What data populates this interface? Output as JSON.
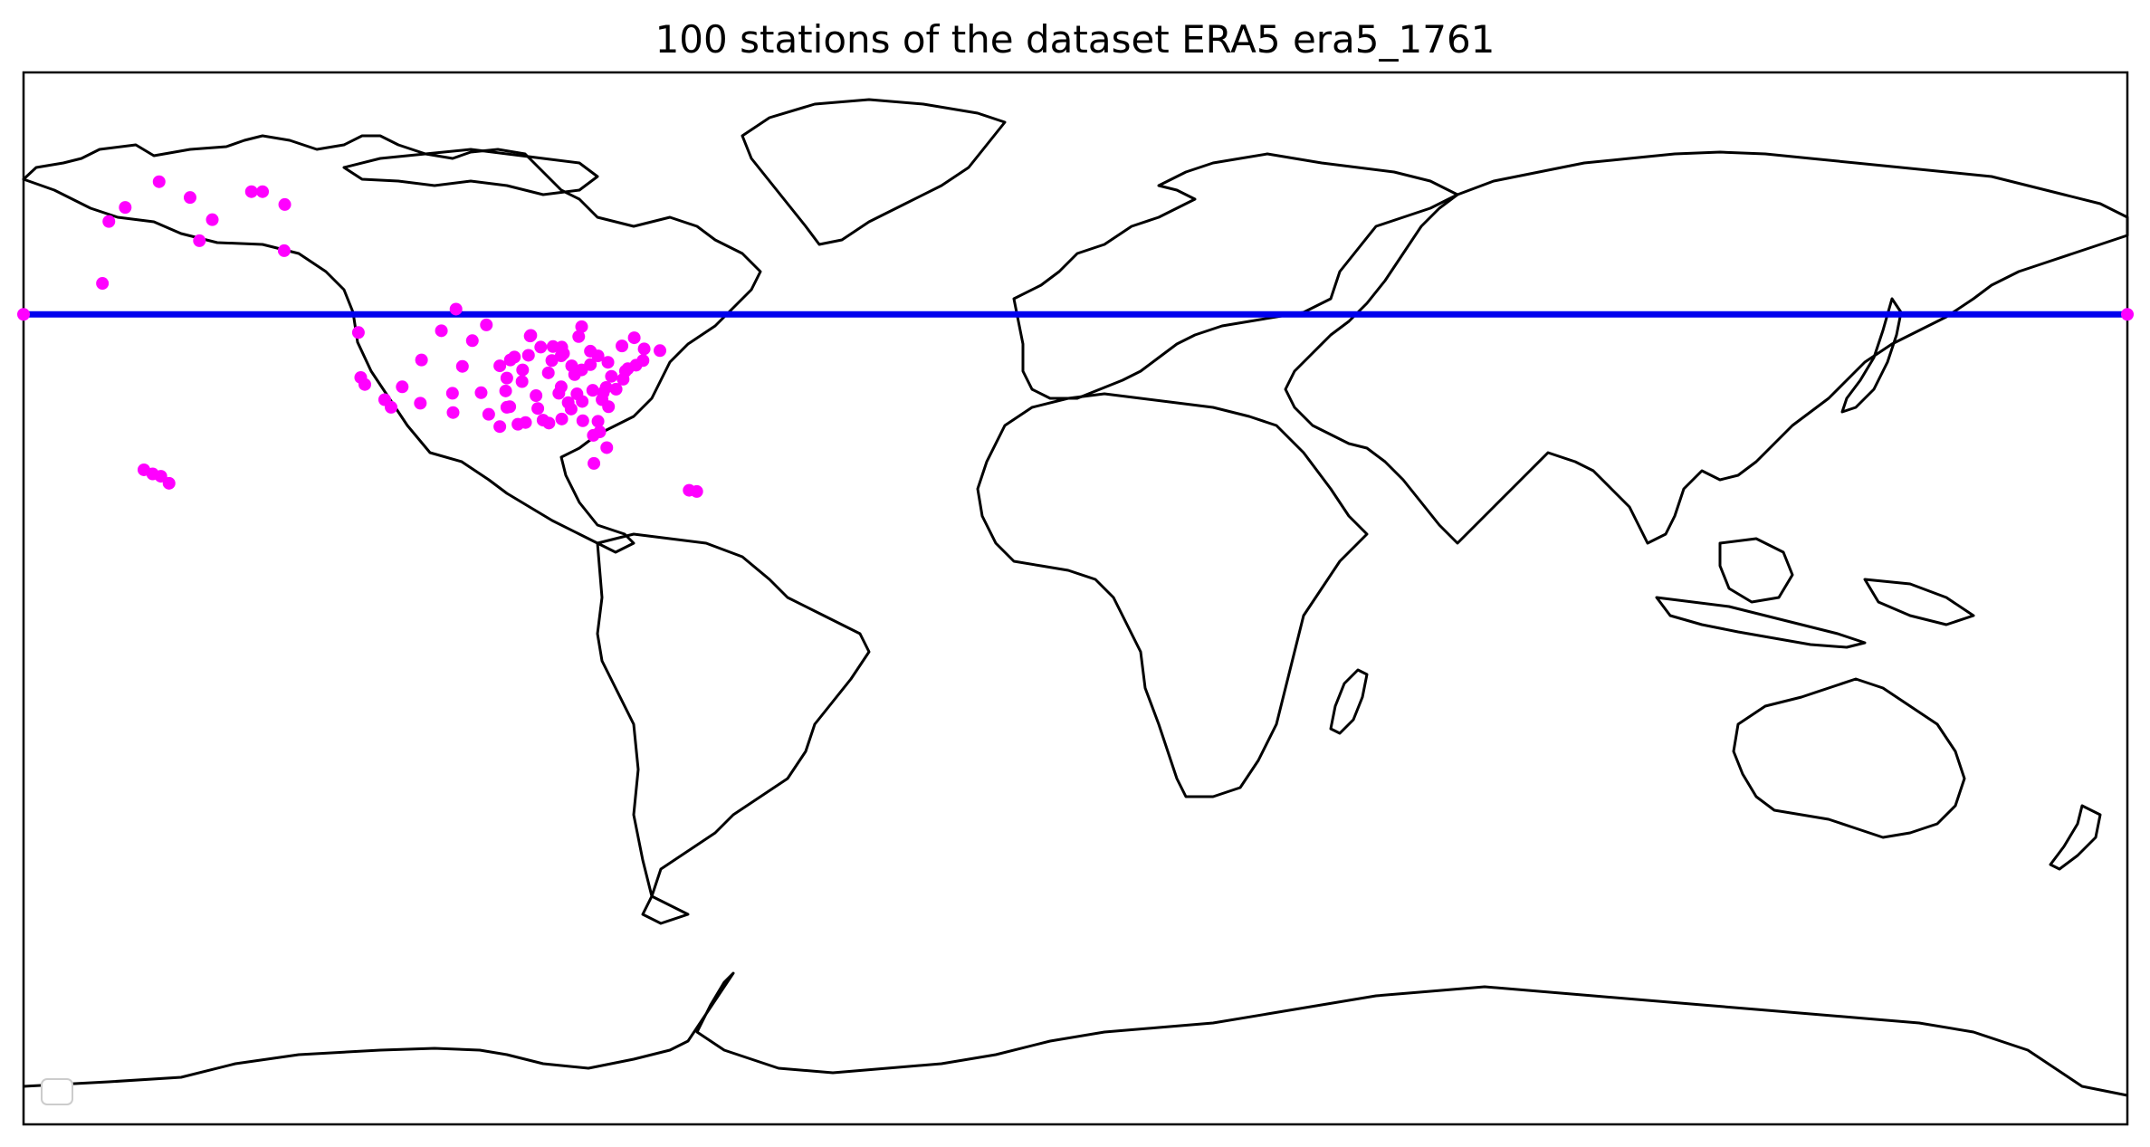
{
  "title": "100 stations of the dataset ERA5 era5_1761",
  "map": {
    "projection": "PlateCarree",
    "lon_range": [
      -180,
      180
    ],
    "lat_range": [
      -90,
      90
    ],
    "coastline_color": "#000000",
    "station_color": "#ff00ff",
    "line_color": "#0000ee",
    "background": "#ffffff"
  },
  "chart_data": {
    "type": "scatter",
    "title": "100 stations of the dataset ERA5 era5_1761",
    "xlim": [
      -180,
      180
    ],
    "ylim": [
      -90,
      90
    ],
    "grid": false,
    "legend": "lower-left (empty)",
    "series": [
      {
        "color": "#ff00ff",
        "points": [
          [
            -165.4,
            64.5
          ],
          [
            -162.6,
            66.9
          ],
          [
            -156.8,
            71.3
          ],
          [
            -151.5,
            68.6
          ],
          [
            -149.9,
            61.2
          ],
          [
            -147.7,
            64.8
          ],
          [
            -166.5,
            53.9
          ],
          [
            -141.0,
            69.6
          ],
          [
            -139.1,
            69.6
          ],
          [
            -135.3,
            67.4
          ],
          [
            -122.7,
            45.5
          ],
          [
            -122.3,
            37.8
          ],
          [
            -121.6,
            36.6
          ],
          [
            -118.2,
            34.0
          ],
          [
            -117.1,
            32.7
          ],
          [
            -115.2,
            36.2
          ],
          [
            -111.9,
            40.8
          ],
          [
            -112.1,
            33.4
          ],
          [
            -106.6,
            35.1
          ],
          [
            -104.9,
            39.7
          ],
          [
            -106.5,
            31.8
          ],
          [
            -108.5,
            45.8
          ],
          [
            -100.8,
            46.8
          ],
          [
            -98.5,
            39.8
          ],
          [
            -97.5,
            35.5
          ],
          [
            -96.8,
            32.8
          ],
          [
            -95.4,
            29.8
          ],
          [
            -98.5,
            29.4
          ],
          [
            -96.0,
            41.3
          ],
          [
            -93.3,
            44.9
          ],
          [
            -94.6,
            39.1
          ],
          [
            -93.6,
            41.6
          ],
          [
            -92.3,
            34.7
          ],
          [
            -90.2,
            38.6
          ],
          [
            -90.1,
            30.0
          ],
          [
            -89.4,
            43.1
          ],
          [
            -87.6,
            41.9
          ],
          [
            -88.0,
            36.2
          ],
          [
            -86.8,
            33.5
          ],
          [
            -86.2,
            39.8
          ],
          [
            -84.4,
            33.7
          ],
          [
            -83.0,
            40.0
          ],
          [
            -85.7,
            38.3
          ],
          [
            -84.5,
            39.1
          ],
          [
            -83.0,
            42.3
          ],
          [
            -81.7,
            41.5
          ],
          [
            -80.0,
            40.4
          ],
          [
            -80.8,
            35.2
          ],
          [
            -81.7,
            30.3
          ],
          [
            -82.5,
            27.9
          ],
          [
            -80.2,
            25.8
          ],
          [
            -81.4,
            28.5
          ],
          [
            -77.0,
            38.9
          ],
          [
            -75.2,
            39.9
          ],
          [
            -74.0,
            40.7
          ],
          [
            -71.1,
            42.4
          ],
          [
            -73.8,
            42.7
          ],
          [
            -76.6,
            39.3
          ],
          [
            -77.4,
            37.5
          ],
          [
            -78.6,
            35.8
          ],
          [
            -79.9,
            32.8
          ],
          [
            -84.3,
            30.4
          ],
          [
            -85.0,
            44.8
          ],
          [
            -84.5,
            46.5
          ],
          [
            -89.6,
            40.7
          ],
          [
            -91.5,
            43.0
          ],
          [
            -94.7,
            37.1
          ],
          [
            -97.3,
            37.7
          ],
          [
            -97.3,
            32.7
          ],
          [
            -94.1,
            30.1
          ],
          [
            -91.1,
            30.5
          ],
          [
            -92.0,
            32.5
          ],
          [
            -88.4,
            35.1
          ],
          [
            -86.3,
            32.4
          ],
          [
            -87.9,
            30.7
          ],
          [
            -85.3,
            35.0
          ],
          [
            -82.6,
            35.6
          ],
          [
            -81.0,
            34.0
          ],
          [
            -80.3,
            36.1
          ],
          [
            -79.4,
            38.0
          ],
          [
            -77.6,
            43.2
          ],
          [
            -75.5,
            44.6
          ],
          [
            -106.0,
            49.5
          ],
          [
            -103.2,
            44.1
          ],
          [
            -101.7,
            35.2
          ],
          [
            -100.4,
            31.5
          ],
          [
            -96.7,
            40.8
          ],
          [
            -93.2,
            45.0
          ],
          [
            -87.9,
            43.0
          ],
          [
            -88.0,
            41.5
          ],
          [
            -155.1,
            19.7
          ],
          [
            -157.9,
            21.3
          ],
          [
            -156.5,
            20.9
          ],
          [
            -159.4,
            22.0
          ],
          [
            -82.4,
            23.1
          ],
          [
            -66.1,
            18.5
          ],
          [
            -64.8,
            18.3
          ],
          [
            -180.0,
            48.6
          ],
          [
            180.0,
            48.6
          ],
          [
            -135.4,
            59.5
          ]
        ]
      }
    ],
    "line": {
      "color": "#0000ee",
      "lat": 48.6,
      "lon_from": -180,
      "lon_to": 180
    }
  }
}
